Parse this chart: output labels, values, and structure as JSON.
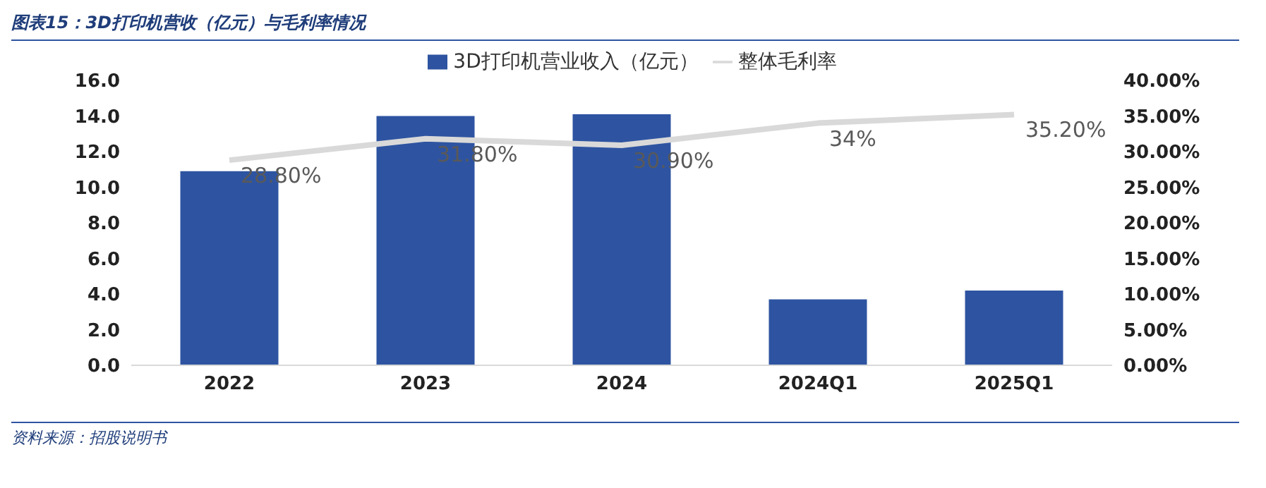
{
  "chart_data": {
    "type": "bar",
    "title": "图表15：3D打印机营收（亿元）与毛利率情况",
    "annotations": [
      "资料来源：招股说明书"
    ],
    "categories": [
      "2022",
      "2023",
      "2024",
      "2024Q1",
      "2025Q1"
    ],
    "series": [
      {
        "name": "3D打印机营业收入（亿元）",
        "color": "#2e54a1",
        "values": [
          10.9,
          14.0,
          14.1,
          3.7,
          4.2
        ]
      },
      {
        "name": "整体毛利率",
        "type": "line",
        "axis": "y2",
        "color": "#d9d9d9",
        "values": [
          28.8,
          31.8,
          30.9,
          34,
          35.2
        ],
        "value_labels": [
          "28.80%",
          "31.80%",
          "30.90%",
          "34%",
          "35.20%"
        ]
      }
    ],
    "ylim": [
      0,
      16
    ],
    "yticks": [
      {
        "value": 0,
        "label": "0.0"
      },
      {
        "value": 2,
        "label": "2.0"
      },
      {
        "value": 4,
        "label": "4.0"
      },
      {
        "value": 6,
        "label": "6.0"
      },
      {
        "value": 8,
        "label": "8.0"
      },
      {
        "value": 10,
        "label": "10.0"
      },
      {
        "value": 12,
        "label": "12.0"
      },
      {
        "value": 14,
        "label": "14.0"
      },
      {
        "value": 16,
        "label": "16.0"
      }
    ],
    "y2lim": [
      0,
      40
    ],
    "y2ticks": [
      {
        "value": 0,
        "label": "0.00%"
      },
      {
        "value": 5,
        "label": "5.00%"
      },
      {
        "value": 10,
        "label": "10.00%"
      },
      {
        "value": 15,
        "label": "15.00%"
      },
      {
        "value": 20,
        "label": "20.00%"
      },
      {
        "value": 25,
        "label": "25.00%"
      },
      {
        "value": 30,
        "label": "30.00%"
      },
      {
        "value": 35,
        "label": "35.00%"
      },
      {
        "value": 40,
        "label": "40.00%"
      }
    ],
    "legend": "top",
    "grid": false,
    "marker": "none"
  }
}
